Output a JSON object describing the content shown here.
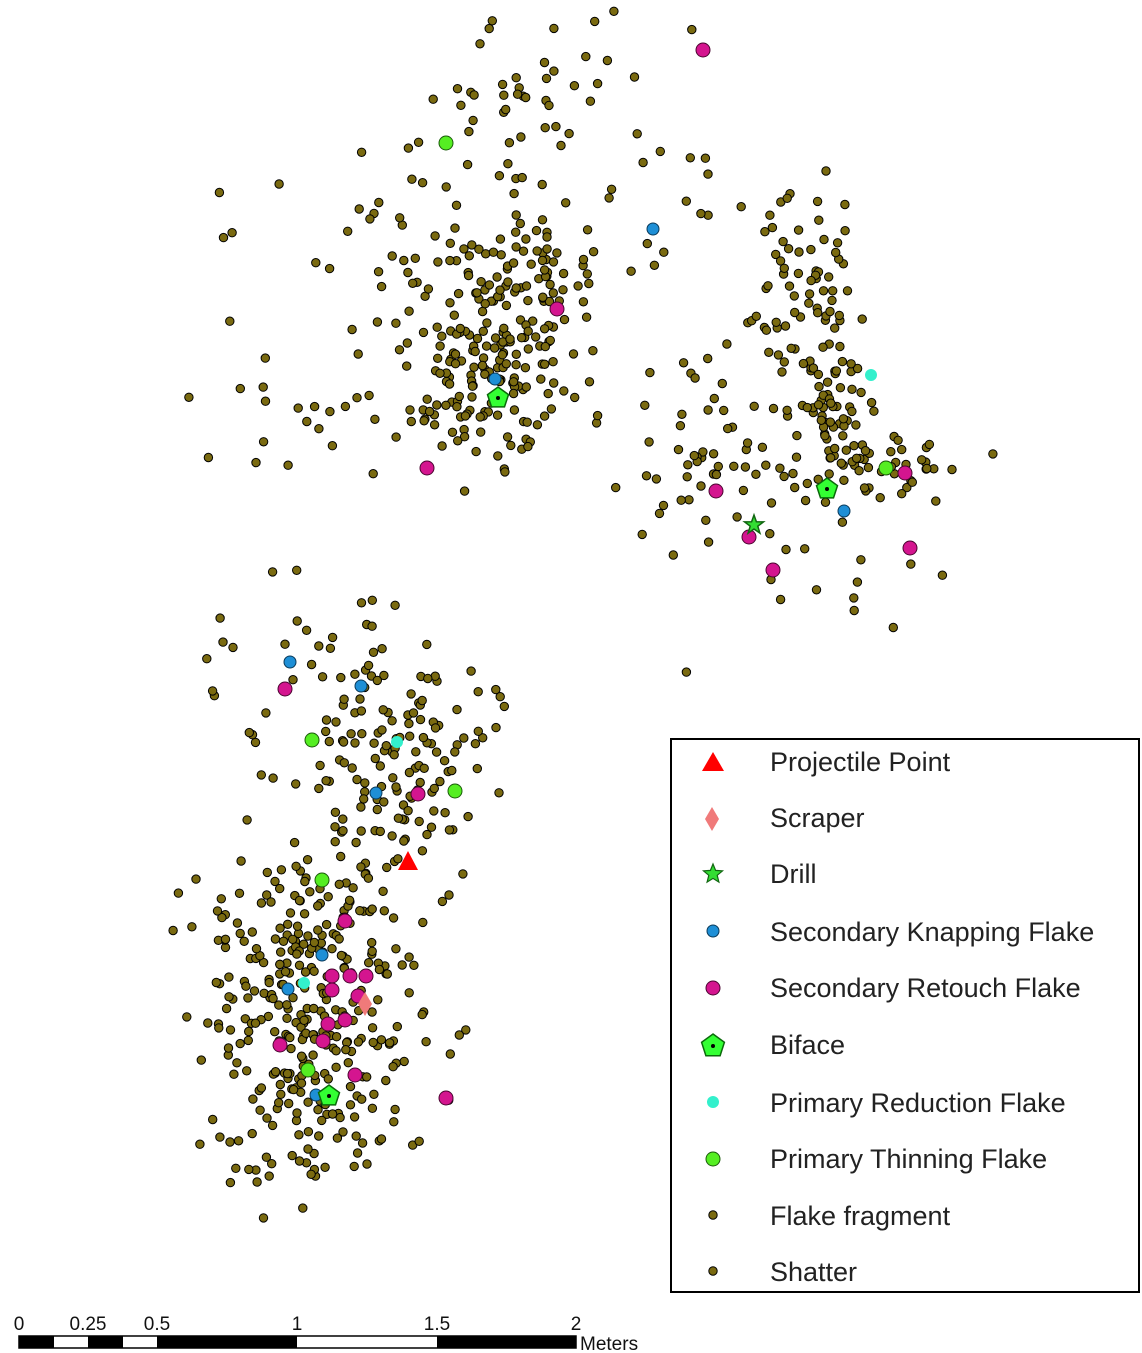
{
  "legend": {
    "items": [
      {
        "id": "projectile",
        "label": "Projectile Point",
        "symbol": "triangle",
        "fill": "#ff0000",
        "stroke": "#ff0000"
      },
      {
        "id": "scraper",
        "label": "Scraper",
        "symbol": "diamond",
        "fill": "#f07a7a",
        "stroke": "#f07a7a"
      },
      {
        "id": "drill",
        "label": "Drill",
        "symbol": "star",
        "fill": "#33dd33",
        "stroke": "#116611"
      },
      {
        "id": "sec-knapping",
        "label": "Secondary Knapping Flake",
        "symbol": "circle",
        "fill": "#1e8fd6",
        "stroke": "#0a3a5a"
      },
      {
        "id": "sec-retouch",
        "label": "Secondary Retouch Flake",
        "symbol": "circle",
        "fill": "#d4158f",
        "stroke": "#4a0530"
      },
      {
        "id": "biface",
        "label": "Biface",
        "symbol": "pentagon",
        "fill": "#33ff33",
        "stroke": "#0a6a0a"
      },
      {
        "id": "primary-reduction",
        "label": "Primary Reduction Flake",
        "symbol": "circle",
        "fill": "#33f0cc",
        "stroke": "#33f0cc"
      },
      {
        "id": "primary-thinning",
        "label": "Primary Thinning Flake",
        "symbol": "circle",
        "fill": "#55ee22",
        "stroke": "#1a5a0a"
      },
      {
        "id": "flake-fragment",
        "label": "Flake fragment",
        "symbol": "dot",
        "fill": "#7a6a10",
        "stroke": "#000000"
      },
      {
        "id": "shatter",
        "label": "Shatter",
        "symbol": "dot",
        "fill": "#7a6a10",
        "stroke": "#000000"
      }
    ]
  },
  "scale_bar": {
    "ticks": [
      "0",
      "0.25",
      "0.5",
      "1",
      "1.5",
      "2"
    ],
    "unit": "Meters"
  }
}
